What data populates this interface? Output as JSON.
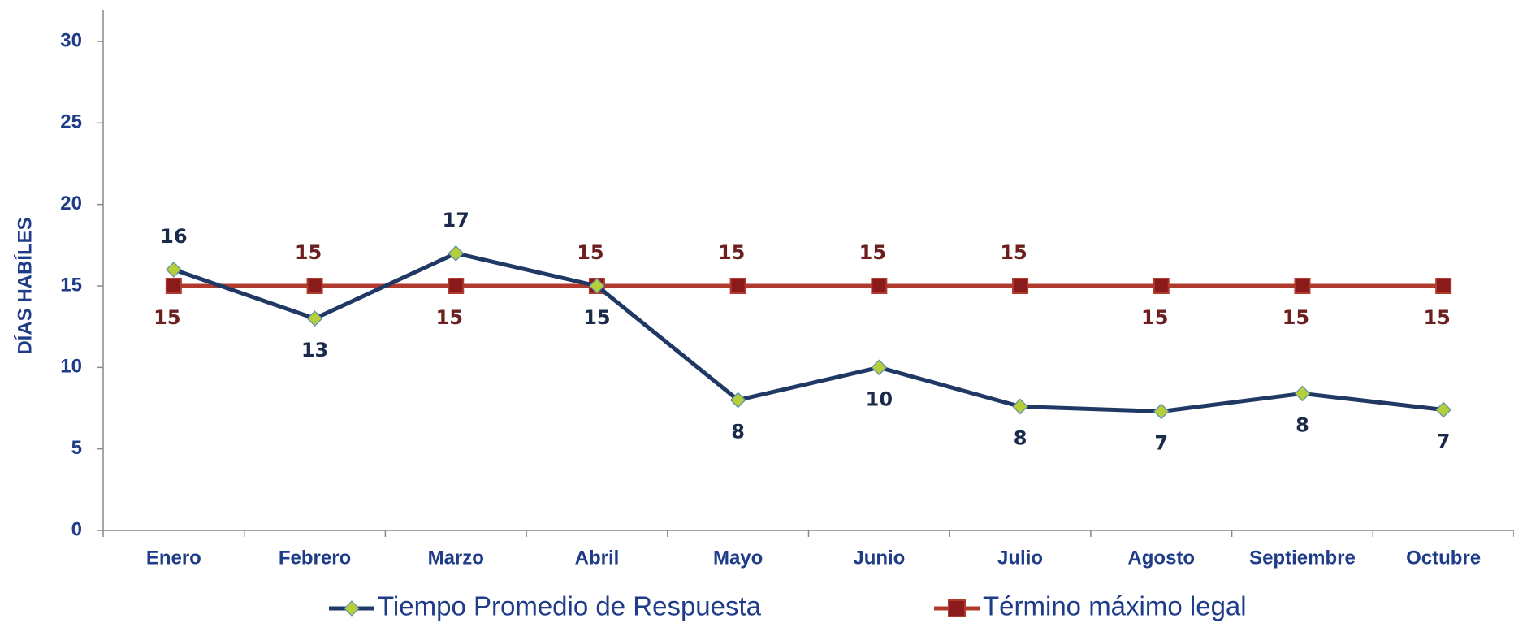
{
  "chart_data": {
    "type": "line",
    "y_axis_label": "DÍAS HABÍLES",
    "categories": [
      "Enero",
      "Febrero",
      "Marzo",
      "Abril",
      "Mayo",
      "Junio",
      "Julio",
      "Agosto",
      "Septiembre",
      "Octubre"
    ],
    "series": [
      {
        "name": "Tiempo Promedio de Respuesta",
        "color": "#1f3864",
        "marker": "diamond",
        "marker_color": "#b5cf3a",
        "values": [
          16,
          13,
          17,
          15,
          8,
          10,
          7.6,
          7.3,
          8.4,
          7.4
        ],
        "value_labels": [
          "16",
          "13",
          "17",
          "15",
          "8",
          "10",
          "8",
          "7",
          "8",
          "7"
        ]
      },
      {
        "name": "Término máximo legal",
        "color": "#b03a2e",
        "marker": "square",
        "marker_color": "#8b1a1a",
        "values": [
          15,
          15,
          15,
          15,
          15,
          15,
          15,
          15,
          15,
          15
        ]
      }
    ],
    "ylim": [
      0,
      30
    ],
    "yticks": [
      0,
      5,
      10,
      15,
      20,
      25,
      30
    ],
    "grid": false,
    "legend": "bottom"
  }
}
